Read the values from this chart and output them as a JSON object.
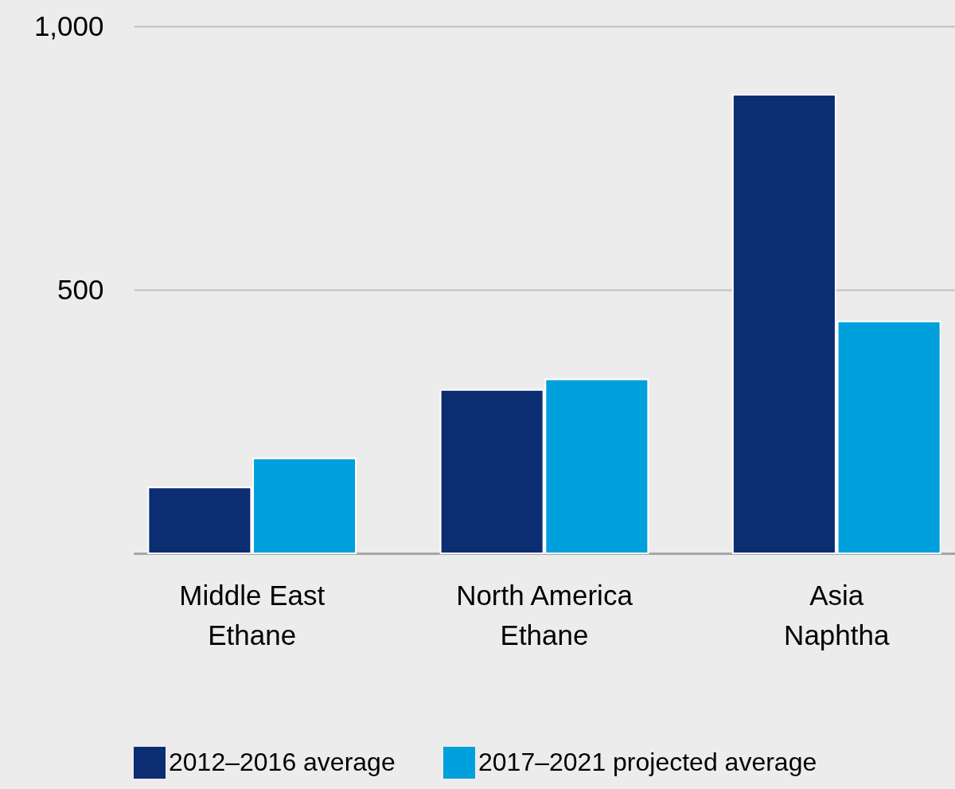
{
  "chart_data": {
    "type": "bar",
    "categories": [
      "Middle East Ethane",
      "North America Ethane",
      "Asia Naphtha"
    ],
    "series": [
      {
        "name": "2012–2016 average",
        "color": "#0c2d72",
        "values": [
          125,
          310,
          870
        ]
      },
      {
        "name": "2017–2021 projected average",
        "color": "#00a0dc",
        "values": [
          180,
          330,
          440
        ]
      }
    ],
    "ylim": [
      0,
      1000
    ],
    "yticks": [
      {
        "value": 0,
        "label": null
      },
      500,
      {
        "value": 1000,
        "label": "1,000"
      }
    ],
    "grid": "y",
    "legend": "bottom"
  }
}
